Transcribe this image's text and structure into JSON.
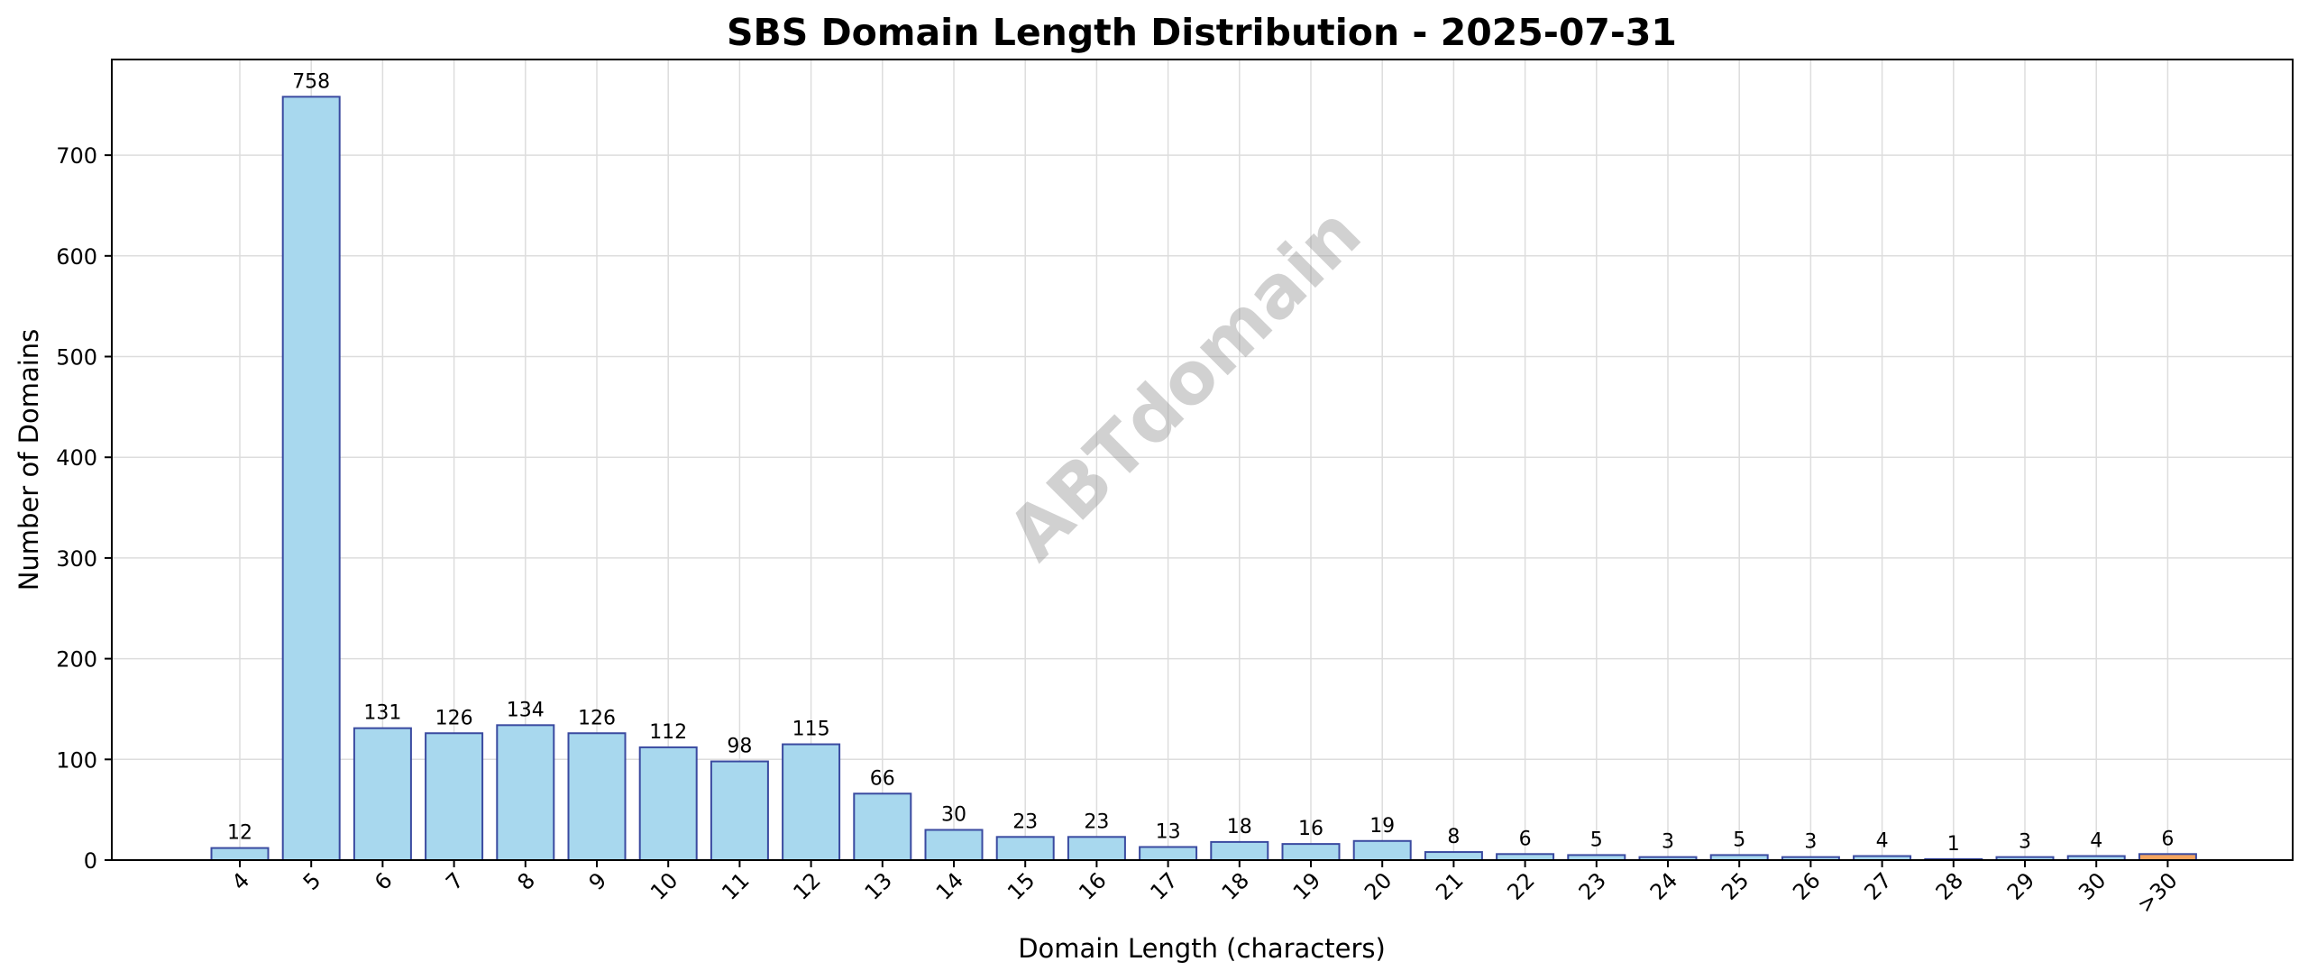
{
  "chart_data": {
    "type": "bar",
    "title": "SBS Domain Length Distribution - 2025-07-31",
    "xlabel": "Domain Length (characters)",
    "ylabel": "Number of Domains",
    "categories": [
      "4",
      "5",
      "6",
      "7",
      "8",
      "9",
      "10",
      "11",
      "12",
      "13",
      "14",
      "15",
      "16",
      "17",
      "18",
      "19",
      "20",
      "21",
      "22",
      "23",
      "24",
      "25",
      "26",
      "27",
      "28",
      "29",
      "30",
      ">30"
    ],
    "values": [
      12,
      758,
      131,
      126,
      134,
      126,
      112,
      98,
      115,
      66,
      30,
      23,
      23,
      13,
      18,
      16,
      19,
      8,
      6,
      5,
      3,
      5,
      3,
      4,
      1,
      3,
      4,
      6
    ],
    "ylim": [
      0,
      795
    ],
    "yticks": [
      0,
      100,
      200,
      300,
      400,
      500,
      600,
      700
    ],
    "grid": true,
    "bar_color": "#a8d8ee",
    "bar_edge_color": "#3a4aa0",
    "highlight_category": ">30",
    "highlight_color": "#f4a460",
    "watermark": "ABTdomain"
  }
}
